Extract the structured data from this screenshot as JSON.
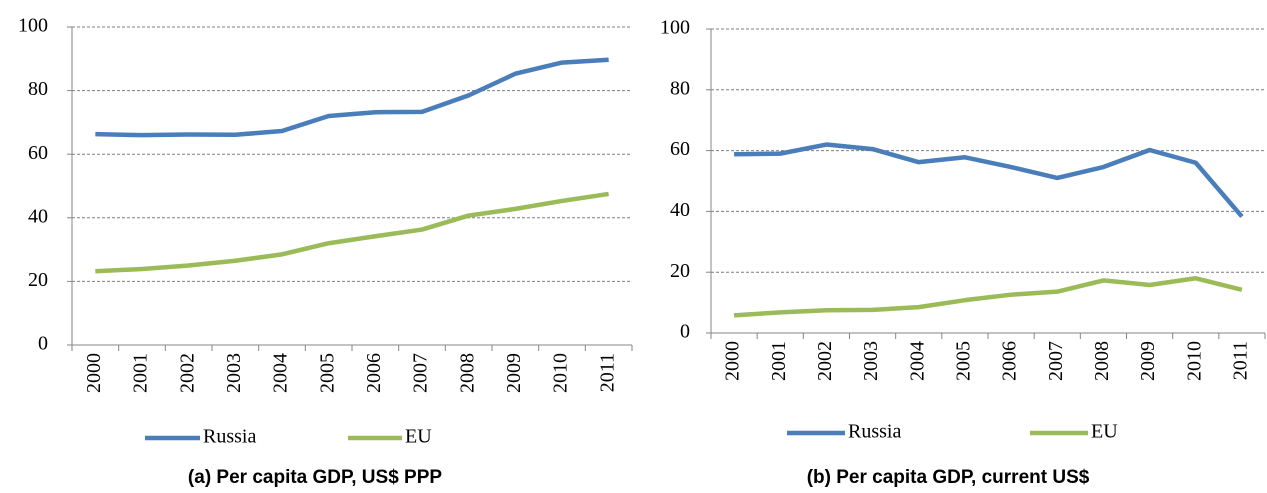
{
  "chart_data": [
    {
      "type": "line",
      "title": "(a) Per capita GDP, US$ PPP",
      "categories": [
        "2000",
        "2001",
        "2002",
        "2003",
        "2004",
        "2005",
        "2006",
        "2007",
        "2008",
        "2009",
        "2010",
        "2011"
      ],
      "series": [
        {
          "name": "Russia",
          "color": "#4a7ebb",
          "values": [
            66.3,
            66.0,
            66.2,
            66.1,
            67.3,
            72.0,
            73.2,
            73.3,
            78.5,
            85.3,
            88.8,
            89.7
          ]
        },
        {
          "name": "EU",
          "color": "#9bbb59",
          "values": [
            23.2,
            23.9,
            25.0,
            26.5,
            28.5,
            32.0,
            34.2,
            36.3,
            40.7,
            42.8,
            45.3,
            47.5
          ]
        }
      ],
      "ylim": [
        0,
        100
      ],
      "yticks": [
        0,
        20,
        40,
        60,
        80,
        100
      ],
      "grid": true
    },
    {
      "type": "line",
      "title": "(b) Per capita GDP, current US$",
      "categories": [
        "2000",
        "2001",
        "2002",
        "2003",
        "2004",
        "2005",
        "2006",
        "2007",
        "2008",
        "2009",
        "2010",
        "2011"
      ],
      "series": [
        {
          "name": "Russia",
          "color": "#4a7ebb",
          "values": [
            58.8,
            59.0,
            62.0,
            60.5,
            56.2,
            57.8,
            54.6,
            51.0,
            54.6,
            60.2,
            56.0,
            38.3
          ]
        },
        {
          "name": "EU",
          "color": "#9bbb59",
          "values": [
            5.8,
            6.8,
            7.5,
            7.6,
            8.5,
            10.8,
            12.6,
            13.6,
            17.3,
            15.8,
            18.0,
            14.2
          ]
        }
      ],
      "ylim": [
        0,
        100
      ],
      "yticks": [
        0,
        20,
        40,
        60,
        80,
        100
      ],
      "grid": true
    }
  ]
}
